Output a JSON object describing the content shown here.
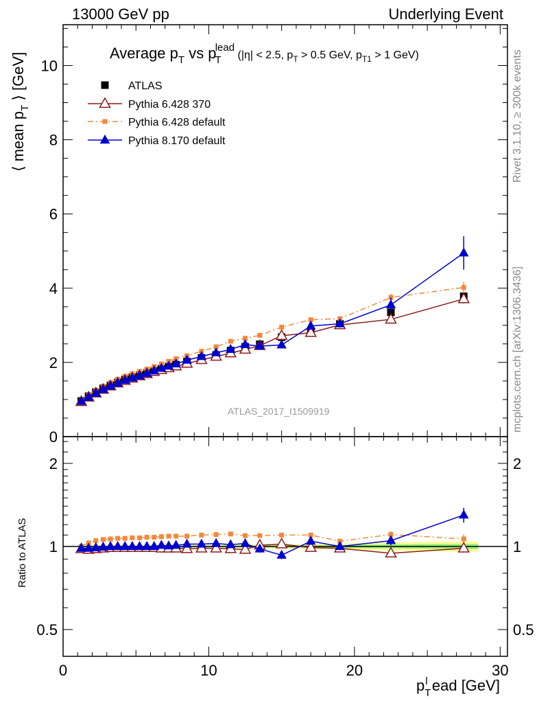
{
  "header": {
    "left": "13000 GeV pp",
    "right": "Underlying Event"
  },
  "side_labels": {
    "rivet": "Rivet 3.1.10, ≥ 300k events",
    "mcplots": "mcplots.cern.ch [arXiv:1306.3436]"
  },
  "colors": {
    "atlas": "#000000",
    "pythia6_370": "#8b1a1a",
    "pythia6_default": "#f4883a",
    "pythia8_default": "#0000cc",
    "band_outer": "#ffff99",
    "band_inner": "#99ee77"
  },
  "chart_data": [
    {
      "type": "scatter",
      "title_text": "Average p_T vs p_T^lead (|η| < 2.5, p_T > 0.5 GeV, p_T1 > 1 GeV)",
      "ylabel": "⟨ mean p_T ⟩ [GeV]",
      "watermark": "ATLAS_2017_I1509919",
      "xlim": [
        0,
        30.5
      ],
      "ylim": [
        0,
        11.1
      ],
      "x_ticks": [
        0,
        10,
        20,
        30
      ],
      "y_ticks": [
        0,
        2,
        4,
        6,
        8,
        10
      ],
      "x": [
        1.25,
        1.75,
        2.25,
        2.75,
        3.25,
        3.75,
        4.25,
        4.75,
        5.25,
        5.75,
        6.25,
        6.75,
        7.25,
        7.75,
        8.5,
        9.5,
        10.5,
        11.5,
        12.5,
        13.5,
        15,
        17,
        19,
        22.5,
        27.5
      ],
      "legend": [
        {
          "name": "ATLAS",
          "key": "atlas"
        },
        {
          "name": "Pythia 6.428 370",
          "key": "p6_370"
        },
        {
          "name": "Pythia 6.428 default",
          "key": "p6_def"
        },
        {
          "name": "Pythia 8.170 default",
          "key": "p8_def"
        }
      ],
      "series": {
        "atlas": [
          0.96,
          1.09,
          1.2,
          1.3,
          1.38,
          1.46,
          1.54,
          1.6,
          1.66,
          1.72,
          1.78,
          1.83,
          1.89,
          1.94,
          2.02,
          2.12,
          2.2,
          2.32,
          2.42,
          2.49,
          2.68,
          2.84,
          3.04,
          3.35,
          3.78
        ],
        "p6_370": [
          0.94,
          1.06,
          1.17,
          1.27,
          1.36,
          1.44,
          1.51,
          1.57,
          1.63,
          1.69,
          1.75,
          1.8,
          1.85,
          1.9,
          1.97,
          2.07,
          2.16,
          2.25,
          2.35,
          2.45,
          2.72,
          2.8,
          3.01,
          3.16,
          3.71
        ],
        "p6_def": [
          0.96,
          1.12,
          1.25,
          1.36,
          1.46,
          1.55,
          1.63,
          1.7,
          1.76,
          1.82,
          1.89,
          1.96,
          2.03,
          2.1,
          2.18,
          2.3,
          2.42,
          2.57,
          2.65,
          2.73,
          2.95,
          3.15,
          3.18,
          3.75,
          4.02
        ],
        "p8_def": [
          0.95,
          1.06,
          1.17,
          1.27,
          1.36,
          1.44,
          1.52,
          1.58,
          1.64,
          1.7,
          1.77,
          1.84,
          1.9,
          1.96,
          2.06,
          2.16,
          2.26,
          2.35,
          2.48,
          2.44,
          2.47,
          2.98,
          3.04,
          3.55,
          4.95
        ]
      },
      "errors": {
        "p6_def": [
          0,
          0,
          0,
          0,
          0,
          0,
          0,
          0,
          0,
          0,
          0,
          0,
          0,
          0,
          0,
          0,
          0,
          0,
          0,
          0,
          0,
          0,
          0.06,
          0.1,
          0.15
        ],
        "p8_def": [
          0,
          0,
          0,
          0,
          0,
          0,
          0,
          0,
          0,
          0,
          0,
          0,
          0,
          0,
          0,
          0,
          0,
          0.06,
          0.06,
          0.06,
          0.06,
          0.1,
          0.1,
          0.2,
          0.45
        ],
        "p6_370": [
          0,
          0,
          0,
          0,
          0,
          0,
          0,
          0,
          0,
          0,
          0,
          0,
          0,
          0,
          0,
          0,
          0,
          0,
          0,
          0,
          0,
          0,
          0.08,
          0.1,
          0.12
        ]
      }
    },
    {
      "type": "scatter",
      "ylabel": "Ratio to ATLAS",
      "xlabel": "p_T^l ead [GeV]",
      "xlim": [
        0,
        30.5
      ],
      "ylim": [
        0.4,
        2.5
      ],
      "log_y": true,
      "x_ticks": [
        0,
        10,
        20,
        30
      ],
      "y_ticks": [
        0.5,
        1,
        2
      ],
      "y_tick_labels_left": [
        "0.5",
        "1",
        "2"
      ],
      "y_tick_labels_right": [
        "0.5",
        "1",
        "2"
      ],
      "x": [
        1.25,
        1.75,
        2.25,
        2.75,
        3.25,
        3.75,
        4.25,
        4.75,
        5.25,
        5.75,
        6.25,
        6.75,
        7.25,
        7.75,
        8.5,
        9.5,
        10.5,
        11.5,
        12.5,
        13.5,
        15,
        17,
        19,
        22.5,
        27.5
      ],
      "series": {
        "p6_370": [
          0.98,
          0.975,
          0.98,
          0.985,
          0.99,
          0.99,
          0.99,
          0.99,
          0.99,
          0.99,
          0.99,
          0.985,
          0.985,
          0.985,
          0.98,
          0.985,
          0.985,
          0.98,
          0.975,
          1.01,
          1.02,
          0.99,
          0.985,
          0.945,
          0.985
        ],
        "p6_def": [
          1.0,
          1.03,
          1.05,
          1.06,
          1.065,
          1.07,
          1.07,
          1.075,
          1.075,
          1.08,
          1.08,
          1.085,
          1.09,
          1.09,
          1.09,
          1.1,
          1.105,
          1.11,
          1.095,
          1.095,
          1.1,
          1.1,
          1.045,
          1.105,
          1.065
        ],
        "p8_def": [
          0.985,
          0.985,
          0.99,
          0.995,
          1.0,
          1.0,
          1.0,
          1.0,
          1.0,
          1.0,
          1.0,
          1.01,
          1.005,
          1.01,
          1.02,
          1.02,
          1.025,
          1.015,
          1.025,
          0.98,
          0.93,
          1.045,
          1.0,
          1.05,
          1.3
        ]
      },
      "errors": {
        "p8_def": [
          0,
          0,
          0,
          0,
          0,
          0,
          0,
          0,
          0,
          0,
          0,
          0,
          0,
          0,
          0,
          0,
          0,
          0,
          0.02,
          0.03,
          0.03,
          0.03,
          0.03,
          0.04,
          0.08
        ],
        "p6_def": [
          0,
          0,
          0,
          0,
          0,
          0,
          0,
          0,
          0,
          0,
          0,
          0,
          0,
          0,
          0,
          0,
          0,
          0,
          0,
          0,
          0,
          0,
          0.02,
          0.03,
          0.04
        ],
        "p6_370": [
          0,
          0,
          0,
          0,
          0,
          0,
          0,
          0,
          0,
          0,
          0,
          0,
          0,
          0,
          0,
          0,
          0,
          0,
          0,
          0,
          0,
          0,
          0.02,
          0.02,
          0.03
        ]
      },
      "band": {
        "x": [
          1.0,
          5,
          10,
          15,
          18,
          20,
          25,
          28.5
        ],
        "outer_half_width": [
          0.012,
          0.012,
          0.014,
          0.018,
          0.022,
          0.028,
          0.04,
          0.045
        ],
        "inner_half_width": [
          0.006,
          0.006,
          0.007,
          0.009,
          0.011,
          0.014,
          0.02,
          0.022
        ]
      }
    }
  ]
}
